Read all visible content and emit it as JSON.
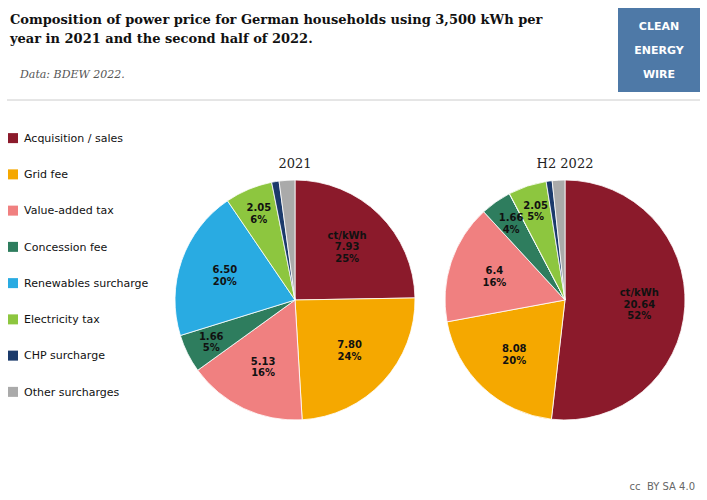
{
  "chart_data": {
    "type": "pie",
    "title": "Composition of power price for German households using 3,500 kWh per\nyear in 2021 and the second half of 2022.",
    "subtitle": "Data: BDEW 2022.",
    "unit": "ct/kWh",
    "annotations": [
      "CLEAN\nENERGY\nWIRE",
      "cc  BY SA 4.0"
    ],
    "categories": [
      "Acquisition / sales",
      "Grid fee",
      "Value-added tax",
      "Concession fee",
      "Renewables surcharge",
      "Electricity tax",
      "CHP surcharge",
      "Other surcharges"
    ],
    "colors": [
      "#8B1A2B",
      "#F5A800",
      "#F08080",
      "#2E7D5E",
      "#29ABE2",
      "#8DC63F",
      "#1B3A6B",
      "#AAAAAA"
    ],
    "legend": "left",
    "data_labels": true,
    "series": [
      {
        "name": "2021",
        "values": [
          7.93,
          7.8,
          5.13,
          1.66,
          6.5,
          2.05,
          0.32,
          0.68
        ],
        "value_labels": [
          "7.93",
          "7.80",
          "5.13",
          "1.66",
          "6.50",
          "2.05",
          null,
          null
        ],
        "shares": [
          25,
          24,
          16,
          5,
          20,
          6,
          null,
          null
        ],
        "share_labels": [
          "25%",
          "24%",
          "16%",
          "5%",
          "20%",
          "6%",
          null,
          null
        ]
      },
      {
        "name": "H2 2022",
        "values": [
          20.64,
          8.08,
          6.4,
          1.66,
          0.01,
          2.05,
          0.32,
          0.68
        ],
        "value_labels": [
          "20.64",
          "8.08",
          "6.4",
          "1.66",
          null,
          "2.05",
          null,
          null
        ],
        "shares": [
          52,
          20,
          16,
          4,
          null,
          5,
          null,
          null
        ],
        "share_labels": [
          "52%",
          "20%",
          "16%",
          "4%",
          null,
          "5%",
          null,
          null
        ]
      }
    ]
  }
}
